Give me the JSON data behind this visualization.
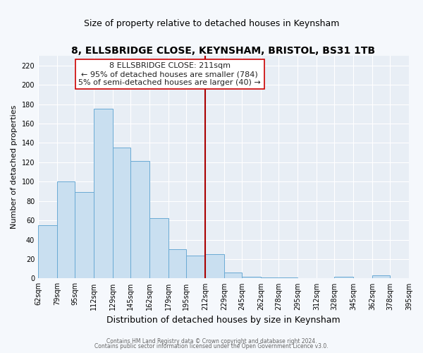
{
  "title": "8, ELLSBRIDGE CLOSE, KEYNSHAM, BRISTOL, BS31 1TB",
  "subtitle": "Size of property relative to detached houses in Keynsham",
  "xlabel": "Distribution of detached houses by size in Keynsham",
  "ylabel": "Number of detached properties",
  "footer_line1": "Contains HM Land Registry data © Crown copyright and database right 2024.",
  "footer_line2": "Contains public sector information licensed under the Open Government Licence v3.0.",
  "annotation_title": "8 ELLSBRIDGE CLOSE: 211sqm",
  "annotation_line1": "← 95% of detached houses are smaller (784)",
  "annotation_line2": "5% of semi-detached houses are larger (40) →",
  "bar_color": "#c9dff0",
  "bar_edgecolor": "#6aaad4",
  "highlight_color": "#c9dff0",
  "highlight_edgecolor": "#6aaad4",
  "vline_color": "#aa0000",
  "vline_x": 212,
  "bin_edges": [
    62,
    79,
    95,
    112,
    129,
    145,
    162,
    179,
    195,
    212,
    229,
    245,
    262,
    278,
    295,
    312,
    328,
    345,
    362,
    378,
    395
  ],
  "bin_heights": [
    55,
    100,
    89,
    175,
    135,
    121,
    62,
    30,
    24,
    25,
    6,
    2,
    1,
    1,
    0,
    0,
    2,
    0,
    3,
    0
  ],
  "ylim": [
    0,
    230
  ],
  "yticks": [
    0,
    20,
    40,
    60,
    80,
    100,
    120,
    140,
    160,
    180,
    200,
    220
  ],
  "background_color": "#f5f8fc",
  "plot_bg_color": "#e8eef5",
  "grid_color": "#ffffff",
  "ann_box_facecolor": "white",
  "ann_box_edgecolor": "#cc0000",
  "ann_text_color": "#222222",
  "footer_color": "#666666",
  "title_fontsize": 10,
  "subtitle_fontsize": 9,
  "xlabel_fontsize": 9,
  "ylabel_fontsize": 8,
  "tick_fontsize": 7,
  "footer_fontsize": 5.5,
  "ann_fontsize": 8
}
